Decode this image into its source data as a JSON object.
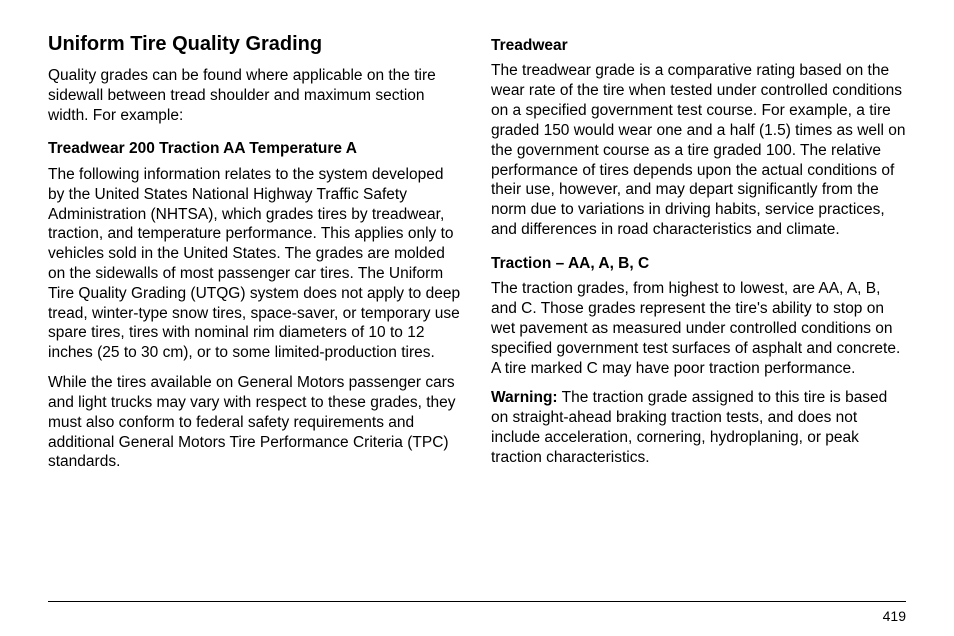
{
  "page": {
    "number": "419",
    "colors": {
      "text": "#000000",
      "background": "#ffffff",
      "rule": "#000000"
    },
    "typography": {
      "body_font": "Arial, Helvetica, sans-serif",
      "h1_size_pt": 15,
      "h2_size_pt": 11.5,
      "body_size_pt": 11.5,
      "line_height": 1.28
    }
  },
  "left": {
    "h1": "Uniform Tire Quality Grading",
    "p1": "Quality grades can be found where applicable on the tire sidewall between tread shoulder and maximum section width. For example:",
    "h2": "Treadwear 200 Traction AA Temperature A",
    "p2": "The following information relates to the system developed by the United States National Highway Traffic Safety Administration (NHTSA), which grades tires by treadwear, traction, and temperature performance. This applies only to vehicles sold in the United States. The grades are molded on the sidewalls of most passenger car tires. The Uniform Tire Quality Grading (UTQG) system does not apply to deep tread, winter-type snow tires, space-saver, or temporary use spare tires, tires with nominal rim diameters of 10 to 12 inches (25 to 30 cm), or to some limited-production tires.",
    "p3": "While the tires available on General Motors passenger cars and light trucks may vary with respect to these grades, they must also conform to federal safety requirements and additional General Motors Tire Performance Criteria (TPC) standards."
  },
  "right": {
    "h2a": "Treadwear",
    "p1": "The treadwear grade is a comparative rating based on the wear rate of the tire when tested under controlled conditions on a specified government test course. For example, a tire graded 150 would wear one and a half (1.5) times as well on the government course as a tire graded 100. The relative performance of tires depends upon the actual conditions of their use, however, and may depart significantly from the norm due to variations in driving habits, service practices, and differences in road characteristics and climate.",
    "h2b": "Traction – AA, A, B, C",
    "p2": "The traction grades, from highest to lowest, are AA, A, B, and C. Those grades represent the tire's ability to stop on wet pavement as measured under controlled conditions on specified government test surfaces of asphalt and concrete. A tire marked C may have poor traction performance.",
    "warn_label": "Warning:",
    "p3": " The traction grade assigned to this tire is based on straight-ahead braking traction tests, and does not include acceleration, cornering, hydroplaning, or peak traction characteristics."
  }
}
